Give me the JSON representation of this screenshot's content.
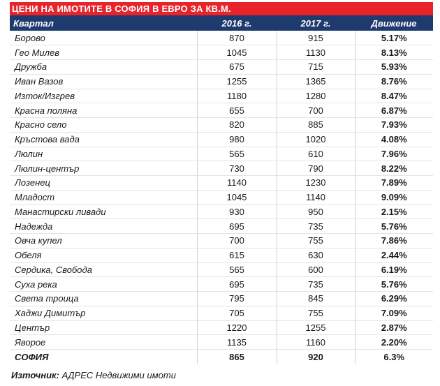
{
  "title": "ЦЕНИ НА ИМОТИТЕ В СОФИЯ В ЕВРО ЗА КВ.М.",
  "header": {
    "district": "Квартал",
    "y2016": "2016 г.",
    "y2017": "2017 г.",
    "change": "Движение"
  },
  "rows": [
    {
      "name": "Борово",
      "y2016": "870",
      "y2017": "915",
      "change": "5.17%"
    },
    {
      "name": "Гео Милев",
      "y2016": "1045",
      "y2017": "1130",
      "change": "8.13%"
    },
    {
      "name": "Дружба",
      "y2016": "675",
      "y2017": "715",
      "change": "5.93%"
    },
    {
      "name": "Иван Вазов",
      "y2016": "1255",
      "y2017": "1365",
      "change": "8.76%"
    },
    {
      "name": "Изток/Изгрев",
      "y2016": "1180",
      "y2017": "1280",
      "change": "8.47%"
    },
    {
      "name": "Красна поляна",
      "y2016": "655",
      "y2017": "700",
      "change": "6.87%"
    },
    {
      "name": "Красно село",
      "y2016": "820",
      "y2017": "885",
      "change": "7.93%"
    },
    {
      "name": "Кръстова вада",
      "y2016": "980",
      "y2017": "1020",
      "change": "4.08%"
    },
    {
      "name": "Люлин",
      "y2016": "565",
      "y2017": "610",
      "change": "7.96%"
    },
    {
      "name": "Люлин-център",
      "y2016": "730",
      "y2017": "790",
      "change": "8.22%"
    },
    {
      "name": "Лозенец",
      "y2016": "1140",
      "y2017": "1230",
      "change": "7.89%"
    },
    {
      "name": "Младост",
      "y2016": "1045",
      "y2017": "1140",
      "change": "9.09%"
    },
    {
      "name": "Манастирски ливади",
      "y2016": "930",
      "y2017": "950",
      "change": "2.15%"
    },
    {
      "name": "Надежда",
      "y2016": "695",
      "y2017": "735",
      "change": "5.76%"
    },
    {
      "name": "Овча купел",
      "y2016": "700",
      "y2017": "755",
      "change": "7.86%"
    },
    {
      "name": "Обеля",
      "y2016": "615",
      "y2017": "630",
      "change": "2.44%"
    },
    {
      "name": "Сердика, Свобода",
      "y2016": "565",
      "y2017": "600",
      "change": "6.19%"
    },
    {
      "name": "Суха река",
      "y2016": "695",
      "y2017": "735",
      "change": "5.76%"
    },
    {
      "name": "Света троица",
      "y2016": "795",
      "y2017": "845",
      "change": "6.29%"
    },
    {
      "name": "Хаджи Димитър",
      "y2016": "705",
      "y2017": "755",
      "change": "7.09%"
    },
    {
      "name": "Център",
      "y2016": "1220",
      "y2017": "1255",
      "change": "2.87%"
    },
    {
      "name": "Яворое",
      "y2016": "1135",
      "y2017": "1160",
      "change": "2.20%"
    }
  ],
  "total": {
    "name": "СОФИЯ",
    "y2016": "865",
    "y2017": "920",
    "change": "6.3%"
  },
  "source": {
    "label": "Източник:",
    "text": " АДРЕС Недвижими имоти"
  },
  "colors": {
    "title_bg": "#e8232a",
    "header_bg": "#1f3a6e"
  }
}
